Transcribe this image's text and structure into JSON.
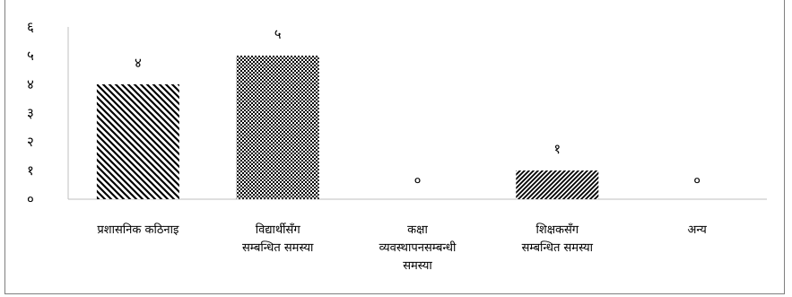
{
  "chart_data": {
    "type": "bar",
    "categories": [
      [
        "प्रशासनिक कठिनाइ"
      ],
      [
        "विद्यार्थीसँग",
        "सम्बन्धित समस्या"
      ],
      [
        "कक्षा",
        "व्यवस्थापनसम्बन्धी",
        "समस्या"
      ],
      [
        "शिक्षकसँग",
        "सम्बन्धित समस्या"
      ],
      [
        "अन्य"
      ]
    ],
    "values": [
      4,
      5,
      0,
      1,
      0
    ],
    "value_labels": [
      "४",
      "५",
      "०",
      "१",
      "०"
    ],
    "bar_patterns": [
      "diagonal-back",
      "checker",
      "none",
      "diagonal-forward",
      "none"
    ],
    "ylim": [
      0,
      6
    ],
    "yticks": [
      {
        "value": 0,
        "label": "०"
      },
      {
        "value": 1,
        "label": "१"
      },
      {
        "value": 2,
        "label": "२"
      },
      {
        "value": 3,
        "label": "३"
      },
      {
        "value": 4,
        "label": "४"
      },
      {
        "value": 5,
        "label": "५"
      },
      {
        "value": 6,
        "label": "६"
      }
    ],
    "grid": false,
    "legend": "none",
    "colors": {
      "bar": "#000000",
      "axis": "#bfbfbf",
      "background": "#ffffff"
    }
  }
}
